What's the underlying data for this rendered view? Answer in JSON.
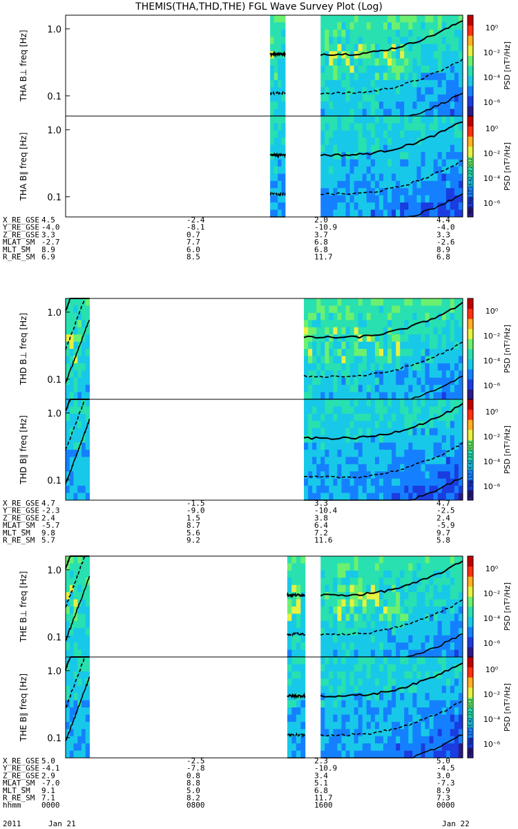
{
  "title": "THEMIS(THA,THD,THE) FGL Wave Survey Plot (Log)",
  "chart_data": {
    "type": "heatmap",
    "yscale": "log",
    "ylim": [
      0.05,
      1.6
    ],
    "yticks": [
      "1.0",
      "0.1"
    ],
    "colorbar": {
      "label": "PSD [nT²/Hz]",
      "ticks": [
        "10⁰",
        "10⁻²",
        "10⁻⁴",
        "10⁻⁶"
      ],
      "stamp": "Mon Sep 17 16:42:22 2012"
    },
    "probes": [
      {
        "panels": [
          {
            "ylabel": "THA B⊥ freq [Hz]"
          },
          {
            "ylabel": "THA B∥ freq [Hz]"
          }
        ],
        "ephemeris": [
          {
            "label": "X_RE_GSE",
            "values": [
              "4.5",
              "-2.4",
              "2.0",
              "4.4"
            ]
          },
          {
            "label": "Y_RE_GSE",
            "values": [
              "-4.0",
              "-8.1",
              "-10.9",
              "-4.0"
            ]
          },
          {
            "label": "Z_RE_GSE",
            "values": [
              "3.3",
              "0.7",
              "3.7",
              "3.3"
            ]
          },
          {
            "label": "MLAT_SM",
            "values": [
              "-2.7",
              "7.7",
              "6.8",
              "-2.6"
            ]
          },
          {
            "label": "MLT_SM",
            "values": [
              "8.9",
              "6.0",
              "6.8",
              "8.9"
            ]
          },
          {
            "label": "R_RE_SM",
            "values": [
              "6.9",
              "8.5",
              "11.7",
              "6.8"
            ]
          }
        ]
      },
      {
        "panels": [
          {
            "ylabel": "THD B⊥ freq [Hz]"
          },
          {
            "ylabel": "THD B∥ freq [Hz]"
          }
        ],
        "ephemeris": [
          {
            "label": "X_RE_GSE",
            "values": [
              "4.7",
              "-1.5",
              "3.3",
              "4.7"
            ]
          },
          {
            "label": "Y_RE_GSE",
            "values": [
              "-2.3",
              "-9.0",
              "-10.4",
              "-2.5"
            ]
          },
          {
            "label": "Z_RE_GSE",
            "values": [
              "2.4",
              "1.5",
              "3.8",
              "2.4"
            ]
          },
          {
            "label": "MLAT_SM",
            "values": [
              "-5.7",
              "8.7",
              "6.4",
              "-5.9"
            ]
          },
          {
            "label": "MLT_SM",
            "values": [
              "9.8",
              "5.6",
              "7.2",
              "9.7"
            ]
          },
          {
            "label": "R_RE_SM",
            "values": [
              "5.7",
              "9.2",
              "11.6",
              "5.8"
            ]
          }
        ]
      },
      {
        "panels": [
          {
            "ylabel": "THE B⊥ freq [Hz]"
          },
          {
            "ylabel": "THE B∥ freq [Hz]"
          }
        ],
        "ephemeris": [
          {
            "label": "X_RE_GSE",
            "values": [
              "5.0",
              "-2.5",
              "2.3",
              "5.0"
            ]
          },
          {
            "label": "Y_RE_GSE",
            "values": [
              "-4.1",
              "-7.8",
              "-10.9",
              "-4.5"
            ]
          },
          {
            "label": "Z_RE_GSE",
            "values": [
              "2.9",
              "0.8",
              "3.4",
              "3.0"
            ]
          },
          {
            "label": "MLAT_SM",
            "values": [
              "-7.0",
              "8.8",
              "5.1",
              "-7.3"
            ]
          },
          {
            "label": "MLT_SM",
            "values": [
              "9.1",
              "5.0",
              "6.8",
              "8.9"
            ]
          },
          {
            "label": "R_RE_SM",
            "values": [
              "7.1",
              "8.2",
              "11.7",
              "7.3"
            ]
          },
          {
            "label": "hhmm",
            "values": [
              "0000",
              "0800",
              "1600",
              "0000"
            ]
          }
        ]
      }
    ],
    "time_axis": {
      "year": "2011",
      "start": "Jan 21",
      "end": "Jan 22"
    }
  }
}
